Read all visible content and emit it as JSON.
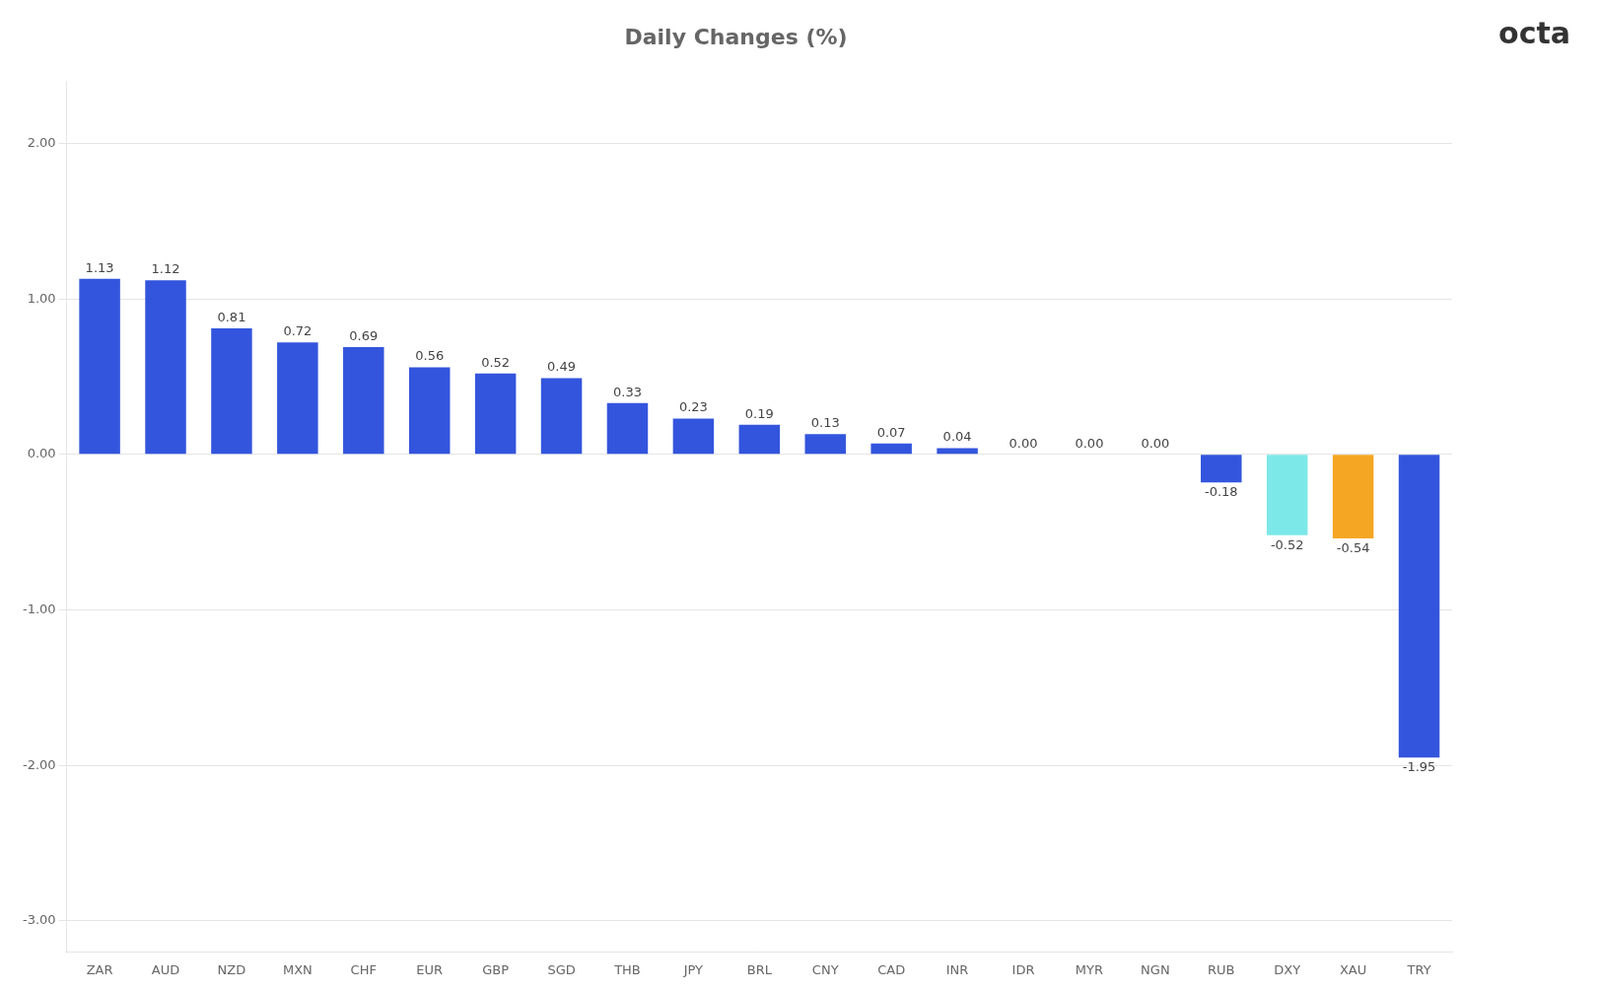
{
  "chart_data": {
    "type": "bar",
    "title": "Daily Changes (%)",
    "categories": [
      "ZAR",
      "AUD",
      "NZD",
      "MXN",
      "CHF",
      "EUR",
      "GBP",
      "SGD",
      "THB",
      "JPY",
      "BRL",
      "CNY",
      "CAD",
      "INR",
      "IDR",
      "MYR",
      "NGN",
      "RUB",
      "DXY",
      "XAU",
      "TRY"
    ],
    "values": [
      1.13,
      1.12,
      0.81,
      0.72,
      0.69,
      0.56,
      0.52,
      0.49,
      0.33,
      0.23,
      0.19,
      0.13,
      0.07,
      0.04,
      0.0,
      0.0,
      0.0,
      -0.18,
      -0.52,
      -0.54,
      -1.95
    ],
    "value_labels": [
      "1.13",
      "1.12",
      "0.81",
      "0.72",
      "0.69",
      "0.56",
      "0.52",
      "0.49",
      "0.33",
      "0.23",
      "0.19",
      "0.13",
      "0.07",
      "0.04",
      "0.00",
      "0.00",
      "0.00",
      "-0.18",
      "-0.52",
      "-0.54",
      "-1.95"
    ],
    "colors": [
      "#3355dd",
      "#3355dd",
      "#3355dd",
      "#3355dd",
      "#3355dd",
      "#3355dd",
      "#3355dd",
      "#3355dd",
      "#3355dd",
      "#3355dd",
      "#3355dd",
      "#3355dd",
      "#3355dd",
      "#3355dd",
      "#3355dd",
      "#3355dd",
      "#3355dd",
      "#3355dd",
      "#7de8e8",
      "#f5a623",
      "#3355dd"
    ],
    "ylim": [
      -3.2,
      2.4
    ],
    "yticks": [
      {
        "value": 2,
        "label": "2.00"
      },
      {
        "value": 1,
        "label": "1.00"
      },
      {
        "value": 0,
        "label": "0.00"
      },
      {
        "value": -1,
        "label": "-1.00"
      },
      {
        "value": -2,
        "label": "-2.00"
      },
      {
        "value": -3,
        "label": "-3.00"
      }
    ],
    "grid": true,
    "data_labels": true,
    "annotations": [
      {
        "text": "octa"
      }
    ]
  }
}
